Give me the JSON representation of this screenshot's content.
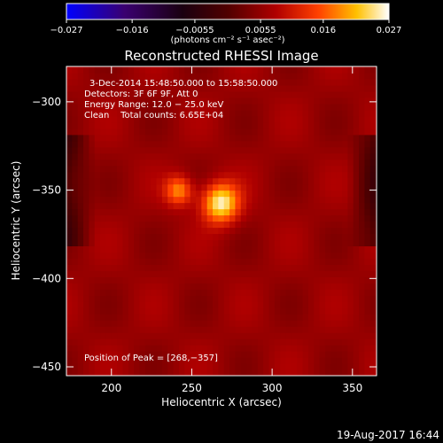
{
  "chart_data": {
    "type": "heatmap",
    "title": "Reconstructed RHESSI Image",
    "xlabel": "Heliocentric X (arcsec)",
    "ylabel": "Heliocentric Y (arcsec)",
    "xlim": [
      172,
      365
    ],
    "ylim": [
      -455,
      -280
    ],
    "x_ticks": [
      {
        "value": 200,
        "label": "200"
      },
      {
        "value": 250,
        "label": "250"
      },
      {
        "value": 300,
        "label": "300"
      },
      {
        "value": 350,
        "label": "350"
      }
    ],
    "y_ticks": [
      {
        "value": -300,
        "label": "−300"
      },
      {
        "value": -350,
        "label": "−350"
      },
      {
        "value": -400,
        "label": "−400"
      },
      {
        "value": -450,
        "label": "−450"
      }
    ],
    "colorbar": {
      "min": -0.027,
      "max": 0.027,
      "unit_label": "(photons cm⁻² s⁻¹ asec⁻²)",
      "ticks": [
        {
          "value": -0.027,
          "label": "−0.027"
        },
        {
          "value": -0.016,
          "label": "−0.016"
        },
        {
          "value": -0.0055,
          "label": "−0.0055"
        },
        {
          "value": 0.0055,
          "label": "0.0055"
        },
        {
          "value": 0.016,
          "label": "0.016"
        },
        {
          "value": 0.027,
          "label": "0.027"
        }
      ]
    },
    "annotations": {
      "time_range": "3-Dec-2014 15:48:50.000 to 15:58:50.000",
      "detectors": "Detectors: 3F 6F 9F, Att 0",
      "energy": "Energy Range: 12.0 − 25.0 keV",
      "clean": "Clean    Total counts: 6.65E+04",
      "peak": "Position of Peak = [268,−357]"
    },
    "sources": [
      {
        "name": "",
        "x": 268,
        "y": -357,
        "peak": 0.027
      },
      {
        "name": "",
        "x": 242,
        "y": -350,
        "peak": 0.02
      }
    ],
    "background_level": 0.007
  },
  "footer": {
    "timestamp": "19-Aug-2017 16:44"
  },
  "colors": {
    "background": "#000000",
    "colormap": [
      "#0000ff",
      "#3a0070",
      "#000000",
      "#7a0000",
      "#ff3000",
      "#ffd000",
      "#ffffff"
    ]
  }
}
